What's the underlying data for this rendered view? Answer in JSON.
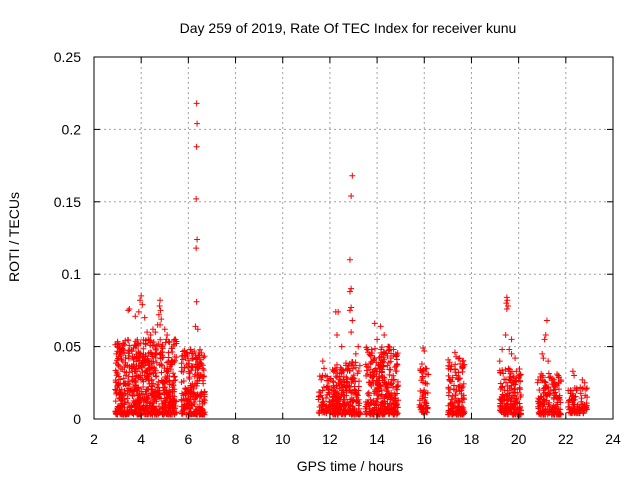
{
  "chart_data": {
    "type": "scatter",
    "title": "Day 259 of 2019, Rate Of TEC Index for receiver kunu",
    "xlabel": "GPS time / hours",
    "ylabel": "ROTI / TECUs",
    "xlim": [
      2,
      24
    ],
    "ylim": [
      0,
      0.25
    ],
    "x_ticks": [
      "2",
      "4",
      "6",
      "8",
      "10",
      "12",
      "14",
      "16",
      "18",
      "20",
      "22",
      "24"
    ],
    "y_ticks": [
      "0",
      "0.05",
      "0.1",
      "0.15",
      "0.2",
      "0.25"
    ],
    "grid": true,
    "marker": "+",
    "series_color": "#ff0000",
    "clusters": [
      {
        "x_start": 2.9,
        "x_end": 5.5,
        "y_max": 0.055,
        "y_base": 0.003,
        "count": 700
      },
      {
        "x_start": 5.7,
        "x_end": 6.7,
        "y_max": 0.048,
        "y_base": 0.003,
        "count": 220
      },
      {
        "x_start": 11.5,
        "x_end": 12.1,
        "y_max": 0.03,
        "y_base": 0.004,
        "count": 70
      },
      {
        "x_start": 12.1,
        "x_end": 13.3,
        "y_max": 0.04,
        "y_base": 0.003,
        "count": 260
      },
      {
        "x_start": 13.5,
        "x_end": 14.9,
        "y_max": 0.05,
        "y_base": 0.003,
        "count": 320
      },
      {
        "x_start": 15.8,
        "x_end": 16.2,
        "y_max": 0.035,
        "y_base": 0.004,
        "count": 55
      },
      {
        "x_start": 17.0,
        "x_end": 17.7,
        "y_max": 0.042,
        "y_base": 0.003,
        "count": 140
      },
      {
        "x_start": 19.2,
        "x_end": 20.1,
        "y_max": 0.035,
        "y_base": 0.003,
        "count": 180
      },
      {
        "x_start": 20.8,
        "x_end": 21.8,
        "y_max": 0.032,
        "y_base": 0.003,
        "count": 170
      },
      {
        "x_start": 22.1,
        "x_end": 22.9,
        "y_max": 0.022,
        "y_base": 0.004,
        "count": 90
      }
    ],
    "points": [
      {
        "x": 6.35,
        "y": 0.218
      },
      {
        "x": 6.37,
        "y": 0.204
      },
      {
        "x": 6.35,
        "y": 0.188
      },
      {
        "x": 6.33,
        "y": 0.152
      },
      {
        "x": 6.37,
        "y": 0.124
      },
      {
        "x": 6.33,
        "y": 0.118
      },
      {
        "x": 6.35,
        "y": 0.081
      },
      {
        "x": 6.3,
        "y": 0.064
      },
      {
        "x": 6.4,
        "y": 0.062
      },
      {
        "x": 6.1,
        "y": 0.048
      },
      {
        "x": 5.95,
        "y": 0.046
      },
      {
        "x": 12.95,
        "y": 0.168
      },
      {
        "x": 12.9,
        "y": 0.154
      },
      {
        "x": 12.85,
        "y": 0.11
      },
      {
        "x": 12.9,
        "y": 0.09
      },
      {
        "x": 12.85,
        "y": 0.088
      },
      {
        "x": 12.9,
        "y": 0.077
      },
      {
        "x": 12.85,
        "y": 0.075
      },
      {
        "x": 12.95,
        "y": 0.068
      },
      {
        "x": 12.9,
        "y": 0.06
      },
      {
        "x": 12.25,
        "y": 0.074
      },
      {
        "x": 12.35,
        "y": 0.074
      },
      {
        "x": 12.3,
        "y": 0.058
      },
      {
        "x": 12.5,
        "y": 0.05
      },
      {
        "x": 13.2,
        "y": 0.05
      },
      {
        "x": 13.1,
        "y": 0.045
      },
      {
        "x": 11.7,
        "y": 0.04
      },
      {
        "x": 11.75,
        "y": 0.035
      },
      {
        "x": 13.9,
        "y": 0.066
      },
      {
        "x": 14.15,
        "y": 0.064
      },
      {
        "x": 14.3,
        "y": 0.058
      },
      {
        "x": 14.0,
        "y": 0.055
      },
      {
        "x": 14.5,
        "y": 0.05
      },
      {
        "x": 14.7,
        "y": 0.048
      },
      {
        "x": 3.5,
        "y": 0.076
      },
      {
        "x": 3.45,
        "y": 0.075
      },
      {
        "x": 3.75,
        "y": 0.071
      },
      {
        "x": 3.0,
        "y": 0.05
      },
      {
        "x": 2.95,
        "y": 0.045
      },
      {
        "x": 4.0,
        "y": 0.085
      },
      {
        "x": 3.95,
        "y": 0.082
      },
      {
        "x": 4.05,
        "y": 0.079
      },
      {
        "x": 3.9,
        "y": 0.074
      },
      {
        "x": 4.15,
        "y": 0.07
      },
      {
        "x": 4.5,
        "y": 0.062
      },
      {
        "x": 4.4,
        "y": 0.058
      },
      {
        "x": 4.7,
        "y": 0.065
      },
      {
        "x": 4.3,
        "y": 0.055
      },
      {
        "x": 4.8,
        "y": 0.082
      },
      {
        "x": 4.78,
        "y": 0.078
      },
      {
        "x": 4.82,
        "y": 0.075
      },
      {
        "x": 4.75,
        "y": 0.072
      },
      {
        "x": 4.85,
        "y": 0.069
      },
      {
        "x": 4.8,
        "y": 0.065
      },
      {
        "x": 5.0,
        "y": 0.062
      },
      {
        "x": 5.1,
        "y": 0.058
      },
      {
        "x": 5.2,
        "y": 0.053
      },
      {
        "x": 4.6,
        "y": 0.06
      },
      {
        "x": 4.25,
        "y": 0.06
      },
      {
        "x": 15.95,
        "y": 0.049
      },
      {
        "x": 16.0,
        "y": 0.047
      },
      {
        "x": 15.9,
        "y": 0.038
      },
      {
        "x": 17.3,
        "y": 0.046
      },
      {
        "x": 17.35,
        "y": 0.043
      },
      {
        "x": 17.5,
        "y": 0.042
      },
      {
        "x": 19.5,
        "y": 0.084
      },
      {
        "x": 19.52,
        "y": 0.082
      },
      {
        "x": 19.48,
        "y": 0.08
      },
      {
        "x": 19.55,
        "y": 0.078
      },
      {
        "x": 19.5,
        "y": 0.076
      },
      {
        "x": 19.45,
        "y": 0.058
      },
      {
        "x": 19.7,
        "y": 0.055
      },
      {
        "x": 19.6,
        "y": 0.048
      },
      {
        "x": 19.7,
        "y": 0.045
      },
      {
        "x": 19.2,
        "y": 0.04
      },
      {
        "x": 19.85,
        "y": 0.042
      },
      {
        "x": 19.3,
        "y": 0.048
      },
      {
        "x": 21.2,
        "y": 0.068
      },
      {
        "x": 21.15,
        "y": 0.058
      },
      {
        "x": 21.1,
        "y": 0.055
      },
      {
        "x": 21.0,
        "y": 0.045
      },
      {
        "x": 21.05,
        "y": 0.042
      },
      {
        "x": 21.25,
        "y": 0.04
      },
      {
        "x": 22.3,
        "y": 0.033
      },
      {
        "x": 22.35,
        "y": 0.03
      },
      {
        "x": 22.7,
        "y": 0.027
      },
      {
        "x": 22.8,
        "y": 0.025
      }
    ]
  }
}
